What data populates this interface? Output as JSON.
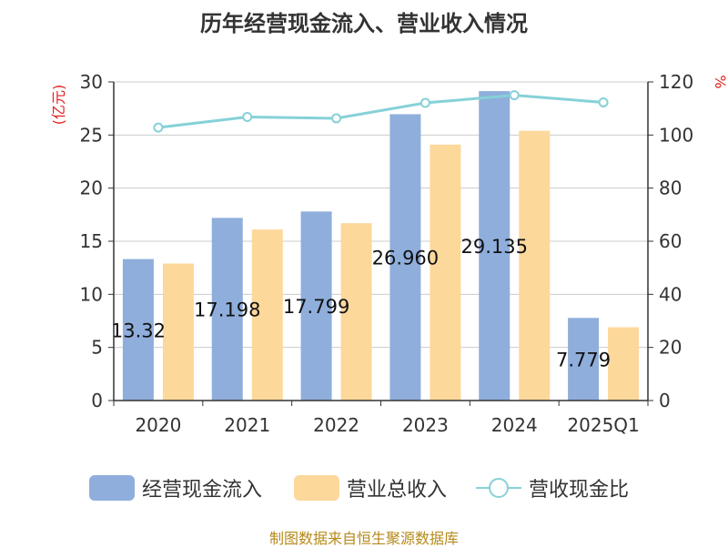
{
  "chart_data": {
    "type": "bar",
    "title": "历年经营现金流入、营业收入情况",
    "categories": [
      "2020",
      "2021",
      "2022",
      "2023",
      "2024",
      "2025Q1"
    ],
    "ylabel_left": "(亿元)",
    "ylabel_right": "%",
    "ylim_left": [
      0,
      30
    ],
    "ylim_right": [
      0,
      120
    ],
    "yticks_left": [
      0,
      5,
      10,
      15,
      20,
      25,
      30
    ],
    "yticks_right": [
      0,
      20,
      40,
      60,
      80,
      100,
      120
    ],
    "grid": true,
    "legend_position": "bottom",
    "series": [
      {
        "name": "经营现金流入",
        "kind": "bar",
        "axis": "left",
        "color": "#8faedc",
        "values": [
          13.321,
          17.198,
          17.799,
          26.96,
          29.135,
          7.779
        ],
        "labels": [
          "13.32",
          "17.198",
          "17.799",
          "26.960",
          "29.135",
          "7.779"
        ]
      },
      {
        "name": "营业总收入",
        "kind": "bar",
        "axis": "left",
        "color": "#fdd89b",
        "values": [
          12.9,
          16.1,
          16.7,
          24.1,
          25.4,
          6.9
        ]
      },
      {
        "name": "营收现金比",
        "kind": "line",
        "axis": "right",
        "color": "#86d1d8",
        "values": [
          102.8,
          106.8,
          106.3,
          112.1,
          115.0,
          112.3
        ]
      }
    ]
  },
  "source_note": "制图数据来自恒生聚源数据库"
}
